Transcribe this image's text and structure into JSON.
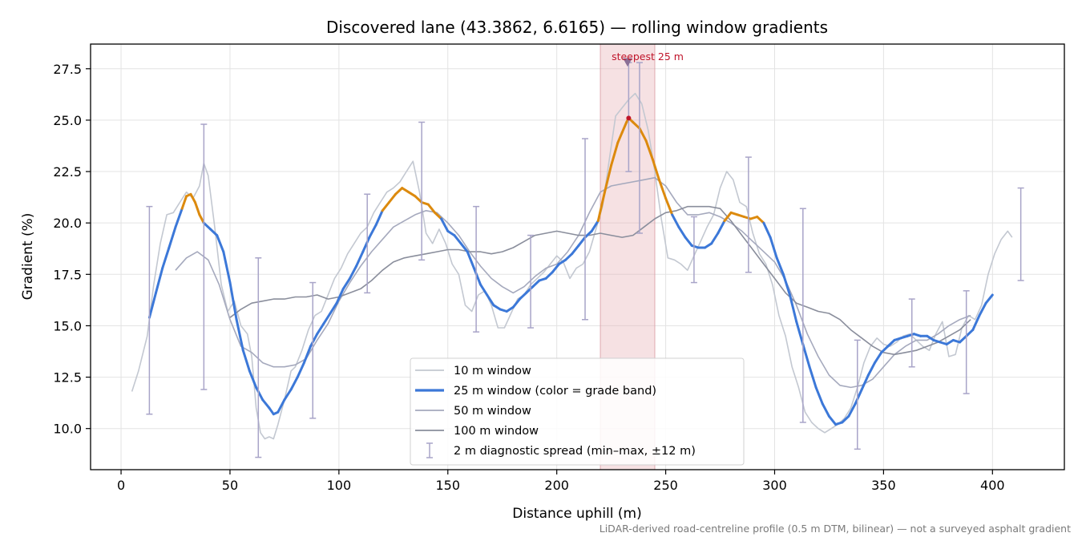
{
  "chart_data": {
    "type": "line",
    "title": "Discovered lane (43.3862, 6.6165) — rolling window gradients",
    "xlabel": "Distance uphill (m)",
    "ylabel": "Gradient (%)",
    "xlim": [
      -14,
      433
    ],
    "ylim": [
      8.0,
      28.7
    ],
    "x_ticks": [
      0,
      50,
      100,
      150,
      200,
      250,
      300,
      350,
      400
    ],
    "y_ticks": [
      10.0,
      12.5,
      15.0,
      17.5,
      20.0,
      22.5,
      25.0,
      27.5
    ],
    "grid": true,
    "legend_position": "lower-center",
    "highlight": {
      "x_start": 220,
      "x_end": 245,
      "color": "#e8b0b6",
      "label": "steepest 25 m",
      "peak": [
        232.5,
        27.8
      ]
    },
    "grade_band_threshold": 20.0,
    "colors": {
      "w10": "#c3c8d1",
      "w25": "#3c78d8",
      "w25_band": "#dc8a0e",
      "w50": "#a5a9bd",
      "w100": "#8a8e9c",
      "spread": "#a8a4c8",
      "highlight": "#c0142a"
    },
    "series": [
      {
        "name": "10 m window",
        "x": [
          5,
          8,
          12,
          15,
          18,
          21,
          24,
          27,
          30,
          33,
          36,
          38,
          40,
          43,
          46,
          49,
          52,
          55,
          58,
          60,
          62,
          64,
          66,
          68,
          70,
          72,
          75,
          78,
          80,
          83,
          86,
          89,
          92,
          95,
          98,
          101,
          104,
          107,
          110,
          113,
          116,
          119,
          122,
          125,
          128,
          131,
          134,
          137,
          140,
          143,
          146,
          149,
          152,
          155,
          158,
          161,
          164,
          167,
          170,
          173,
          176,
          179,
          182,
          185,
          188,
          191,
          194,
          197,
          200,
          203,
          206,
          209,
          212,
          215,
          218,
          221,
          224,
          227,
          230,
          233,
          236,
          239,
          242,
          245,
          248,
          251,
          254,
          257,
          260,
          263,
          266,
          269,
          272,
          275,
          278,
          281,
          284,
          287,
          290,
          293,
          296,
          299,
          302,
          305,
          308,
          311,
          314,
          317,
          320,
          323,
          326,
          329,
          332,
          335,
          338,
          341,
          344,
          347,
          350,
          353,
          356,
          359,
          362,
          365,
          368,
          371,
          374,
          377,
          380,
          383,
          386,
          389,
          392,
          395,
          398,
          401,
          404,
          407,
          409
        ],
        "y": [
          11.8,
          12.8,
          14.5,
          17.0,
          19.0,
          20.4,
          20.5,
          21.0,
          21.5,
          21.2,
          21.8,
          22.9,
          22.3,
          19.8,
          17.0,
          15.7,
          16.2,
          15.0,
          14.6,
          13.5,
          11.0,
          9.8,
          9.5,
          9.6,
          9.5,
          10.2,
          11.4,
          12.8,
          13.0,
          13.8,
          14.8,
          15.5,
          15.7,
          16.5,
          17.3,
          17.8,
          18.5,
          19.0,
          19.5,
          19.8,
          20.5,
          21.0,
          21.5,
          21.7,
          22.0,
          22.5,
          23.0,
          21.5,
          19.5,
          19.0,
          19.7,
          19.0,
          18.0,
          17.5,
          16.0,
          15.7,
          16.5,
          16.7,
          16.0,
          14.9,
          14.9,
          15.6,
          16.3,
          16.5,
          17.0,
          17.3,
          17.6,
          18.0,
          18.4,
          18.1,
          17.3,
          17.8,
          18.0,
          18.6,
          19.7,
          20.8,
          23.0,
          25.2,
          25.6,
          26.0,
          26.3,
          25.8,
          24.5,
          22.5,
          20.2,
          18.3,
          18.2,
          18.0,
          17.7,
          18.4,
          19.1,
          19.8,
          20.4,
          21.7,
          22.5,
          22.1,
          21.0,
          20.8,
          19.5,
          18.5,
          18.0,
          17.0,
          15.5,
          14.5,
          13.0,
          12.0,
          10.8,
          10.3,
          10.0,
          9.8,
          10.0,
          10.2,
          10.5,
          11.0,
          12.0,
          13.2,
          14.0,
          14.4,
          14.1,
          14.0,
          14.2,
          14.5,
          14.6,
          14.3,
          14.0,
          13.8,
          14.6,
          15.2,
          13.5,
          13.6,
          14.9,
          15.5,
          15.3,
          16.0,
          17.5,
          18.5,
          19.2,
          19.6,
          19.3
        ]
      },
      {
        "name": "25 m window (color = grade band)",
        "x": [
          13,
          16,
          19,
          22,
          25,
          28,
          30,
          32,
          34,
          36,
          38,
          41,
          44,
          47,
          50,
          53,
          56,
          59,
          62,
          65,
          68,
          70,
          72,
          75,
          78,
          81,
          84,
          87,
          90,
          93,
          96,
          99,
          102,
          105,
          108,
          111,
          114,
          117,
          120,
          123,
          126,
          129,
          132,
          135,
          138,
          141,
          144,
          147,
          150,
          153,
          156,
          159,
          162,
          165,
          168,
          171,
          174,
          177,
          180,
          183,
          186,
          189,
          192,
          195,
          198,
          201,
          204,
          207,
          210,
          213,
          216,
          219,
          222,
          225,
          228,
          230,
          232,
          233,
          235,
          238,
          241,
          244,
          247,
          250,
          253,
          256,
          259,
          262,
          265,
          268,
          271,
          274,
          277,
          280,
          283,
          286,
          289,
          292,
          295,
          298,
          301,
          304,
          307,
          310,
          313,
          316,
          319,
          322,
          325,
          328,
          331,
          334,
          337,
          340,
          343,
          346,
          349,
          352,
          355,
          358,
          361,
          364,
          367,
          370,
          373,
          376,
          379,
          382,
          385,
          388,
          391,
          394,
          397,
          400
        ],
        "y": [
          15.4,
          16.6,
          17.8,
          18.8,
          19.8,
          20.7,
          21.3,
          21.4,
          21.0,
          20.4,
          20.0,
          19.7,
          19.4,
          18.6,
          17.1,
          15.3,
          13.8,
          12.8,
          12.0,
          11.4,
          11.0,
          10.7,
          10.8,
          11.4,
          11.9,
          12.5,
          13.2,
          14.0,
          14.6,
          15.1,
          15.6,
          16.1,
          16.8,
          17.3,
          17.9,
          18.6,
          19.3,
          19.9,
          20.6,
          21.0,
          21.4,
          21.7,
          21.5,
          21.3,
          21.0,
          20.9,
          20.5,
          20.2,
          19.6,
          19.4,
          19.0,
          18.6,
          17.8,
          17.0,
          16.5,
          16.0,
          15.8,
          15.7,
          15.9,
          16.3,
          16.6,
          16.9,
          17.2,
          17.3,
          17.6,
          18.0,
          18.2,
          18.5,
          18.9,
          19.3,
          19.6,
          20.1,
          21.5,
          22.8,
          23.9,
          24.4,
          24.9,
          25.1,
          24.9,
          24.6,
          24.0,
          23.1,
          22.1,
          21.2,
          20.4,
          19.8,
          19.3,
          18.9,
          18.8,
          18.8,
          19.0,
          19.5,
          20.1,
          20.5,
          20.4,
          20.3,
          20.2,
          20.3,
          20.0,
          19.3,
          18.3,
          17.5,
          16.5,
          15.2,
          14.1,
          13.0,
          12.0,
          11.2,
          10.6,
          10.2,
          10.3,
          10.6,
          11.2,
          11.9,
          12.6,
          13.2,
          13.7,
          14.0,
          14.3,
          14.4,
          14.5,
          14.6,
          14.5,
          14.5,
          14.3,
          14.2,
          14.1,
          14.3,
          14.2,
          14.5,
          14.8,
          15.5,
          16.1,
          16.5
        ]
      },
      {
        "name": "50 m window",
        "x": [
          25,
          30,
          35,
          40,
          45,
          50,
          55,
          60,
          65,
          70,
          75,
          80,
          85,
          90,
          95,
          100,
          105,
          110,
          115,
          120,
          125,
          130,
          135,
          140,
          145,
          150,
          155,
          160,
          165,
          170,
          175,
          180,
          185,
          190,
          195,
          200,
          205,
          210,
          215,
          220,
          225,
          230,
          235,
          240,
          245,
          250,
          255,
          260,
          265,
          270,
          275,
          280,
          285,
          290,
          295,
          300,
          305,
          310,
          315,
          320,
          325,
          330,
          335,
          340,
          345,
          350,
          355,
          360,
          365,
          370,
          375,
          380,
          385,
          390
        ],
        "y": [
          17.7,
          18.3,
          18.6,
          18.2,
          17.0,
          15.3,
          14.0,
          13.7,
          13.2,
          13.0,
          13.0,
          13.1,
          13.4,
          14.3,
          15.1,
          16.2,
          17.1,
          17.9,
          18.6,
          19.2,
          19.8,
          20.1,
          20.4,
          20.6,
          20.5,
          20.0,
          19.4,
          18.6,
          17.9,
          17.3,
          16.9,
          16.6,
          16.9,
          17.4,
          17.8,
          18.0,
          18.6,
          19.4,
          20.5,
          21.5,
          21.8,
          21.9,
          22.0,
          22.1,
          22.2,
          21.8,
          21.0,
          20.4,
          20.4,
          20.5,
          20.3,
          20.0,
          19.6,
          19.1,
          18.6,
          18.1,
          17.2,
          16.0,
          14.6,
          13.5,
          12.6,
          12.1,
          12.0,
          12.1,
          12.4,
          13.0,
          13.6,
          14.0,
          14.3,
          14.3,
          14.6,
          15.0,
          15.3,
          15.5
        ]
      },
      {
        "name": "100 m window",
        "x": [
          50,
          55,
          60,
          65,
          70,
          75,
          80,
          85,
          90,
          95,
          100,
          105,
          110,
          115,
          120,
          125,
          130,
          135,
          140,
          145,
          150,
          155,
          160,
          165,
          170,
          175,
          180,
          185,
          190,
          195,
          200,
          205,
          210,
          215,
          220,
          225,
          230,
          235,
          240,
          245,
          250,
          255,
          260,
          265,
          270,
          275,
          280,
          285,
          290,
          295,
          300,
          305,
          310,
          315,
          320,
          325,
          330,
          335,
          340,
          345,
          350,
          355,
          360,
          365,
          370,
          375,
          380,
          385,
          390
        ],
        "y": [
          15.4,
          15.8,
          16.1,
          16.2,
          16.3,
          16.3,
          16.4,
          16.4,
          16.5,
          16.3,
          16.4,
          16.6,
          16.8,
          17.2,
          17.7,
          18.1,
          18.3,
          18.4,
          18.5,
          18.6,
          18.7,
          18.7,
          18.6,
          18.6,
          18.5,
          18.6,
          18.8,
          19.1,
          19.4,
          19.5,
          19.6,
          19.5,
          19.4,
          19.4,
          19.5,
          19.4,
          19.3,
          19.4,
          19.8,
          20.2,
          20.5,
          20.6,
          20.8,
          20.8,
          20.8,
          20.7,
          20.1,
          19.4,
          18.7,
          18.0,
          17.3,
          16.6,
          16.1,
          15.9,
          15.7,
          15.6,
          15.3,
          14.8,
          14.4,
          14.0,
          13.7,
          13.6,
          13.7,
          13.8,
          14.0,
          14.2,
          14.5,
          14.8,
          15.3
        ]
      },
      {
        "name": "2 m diagnostic spread (min–max, ±12 m)",
        "x": [
          13,
          38,
          63,
          88,
          113,
          138,
          163,
          188,
          213,
          238,
          263,
          288,
          313,
          338,
          363,
          388,
          413
        ],
        "ymin": [
          10.7,
          11.9,
          8.6,
          10.5,
          16.6,
          18.2,
          14.7,
          14.9,
          15.3,
          19.5,
          17.1,
          17.6,
          10.3,
          9.0,
          13.0,
          11.7,
          17.2
        ],
        "ymax": [
          20.8,
          24.8,
          18.3,
          17.1,
          21.4,
          24.9,
          20.8,
          19.4,
          24.1,
          27.8,
          20.3,
          23.2,
          20.7,
          14.3,
          16.3,
          16.7,
          21.7
        ],
        "extra_cap_x": 233,
        "extra_range": [
          22.5,
          27.8
        ]
      }
    ],
    "annotations": [
      "steepest 25 m"
    ],
    "footnote": "LiDAR-derived road-centreline profile (0.5 m DTM, bilinear) — not a surveyed asphalt gradient"
  }
}
